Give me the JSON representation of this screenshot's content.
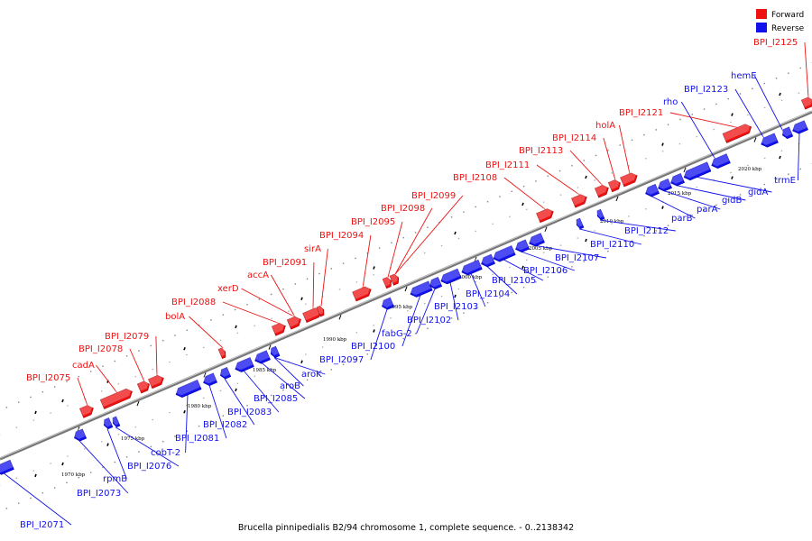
{
  "caption": "Brucella pinnipedialis B2/94 chromosome 1, complete sequence. - 0..2138342",
  "legend": [
    {
      "label": "Forward",
      "color": "#ee1111"
    },
    {
      "label": "Reverse",
      "color": "#1111ee"
    }
  ],
  "colors": {
    "forward": "#ee1111",
    "reverse": "#1111ee",
    "backbone": "#888888"
  },
  "tick_labels": [
    "1970 kbp",
    "1975 kbp",
    "1980 kbp",
    "1985 kbp",
    "1990 kbp",
    "1995 kbp",
    "2000 kbp",
    "2005 kbp",
    "2010 kbp",
    "2015 kbp",
    "2020 kbp"
  ],
  "genes": [
    {
      "name": "BPI_I2071",
      "strand": "reverse"
    },
    {
      "name": "BPI_I2073",
      "strand": "reverse"
    },
    {
      "name": "rpmB",
      "strand": "reverse"
    },
    {
      "name": "BPI_I2075",
      "strand": "forward"
    },
    {
      "name": "BPI_I2076",
      "strand": "reverse"
    },
    {
      "name": "cadA",
      "strand": "forward"
    },
    {
      "name": "BPI_I2078",
      "strand": "forward"
    },
    {
      "name": "BPI_I2079",
      "strand": "forward"
    },
    {
      "name": "cobT-2",
      "strand": "reverse"
    },
    {
      "name": "BPI_I2081",
      "strand": "reverse"
    },
    {
      "name": "BPI_I2082",
      "strand": "reverse"
    },
    {
      "name": "BPI_I2083",
      "strand": "reverse"
    },
    {
      "name": "BPI_I2085",
      "strand": "reverse"
    },
    {
      "name": "aroB",
      "strand": "reverse"
    },
    {
      "name": "aroK",
      "strand": "reverse"
    },
    {
      "name": "bolA",
      "strand": "forward"
    },
    {
      "name": "BPI_I2088",
      "strand": "forward"
    },
    {
      "name": "xerD",
      "strand": "forward"
    },
    {
      "name": "accA",
      "strand": "forward"
    },
    {
      "name": "BPI_I2091",
      "strand": "forward"
    },
    {
      "name": "sirA",
      "strand": "forward"
    },
    {
      "name": "BPI_I2094",
      "strand": "forward"
    },
    {
      "name": "BPI_I2095",
      "strand": "forward"
    },
    {
      "name": "BPI_I2097",
      "strand": "reverse"
    },
    {
      "name": "BPI_I2098",
      "strand": "forward"
    },
    {
      "name": "BPI_I2099",
      "strand": "forward"
    },
    {
      "name": "BPI_I2100",
      "strand": "reverse"
    },
    {
      "name": "fabG-2",
      "strand": "reverse"
    },
    {
      "name": "BPI_I2102",
      "strand": "reverse"
    },
    {
      "name": "BPI_I2103",
      "strand": "reverse"
    },
    {
      "name": "BPI_I2104",
      "strand": "reverse"
    },
    {
      "name": "BPI_I2105",
      "strand": "reverse"
    },
    {
      "name": "BPI_I2106",
      "strand": "reverse"
    },
    {
      "name": "BPI_I2107",
      "strand": "reverse"
    },
    {
      "name": "BPI_I2108",
      "strand": "forward"
    },
    {
      "name": "BPI_I2110",
      "strand": "reverse"
    },
    {
      "name": "BPI_I2111",
      "strand": "forward"
    },
    {
      "name": "BPI_I2112",
      "strand": "reverse"
    },
    {
      "name": "BPI_I2113",
      "strand": "forward"
    },
    {
      "name": "BPI_I2114",
      "strand": "forward"
    },
    {
      "name": "holA",
      "strand": "forward"
    },
    {
      "name": "parB",
      "strand": "reverse"
    },
    {
      "name": "parA",
      "strand": "reverse"
    },
    {
      "name": "gidB",
      "strand": "reverse"
    },
    {
      "name": "gidA",
      "strand": "reverse"
    },
    {
      "name": "BPI_I2121",
      "strand": "forward"
    },
    {
      "name": "rho",
      "strand": "reverse"
    },
    {
      "name": "BPI_I2123",
      "strand": "reverse"
    },
    {
      "name": "hemE",
      "strand": "reverse"
    },
    {
      "name": "trmE",
      "strand": "reverse"
    },
    {
      "name": "BPI_I2125",
      "strand": "forward"
    }
  ]
}
